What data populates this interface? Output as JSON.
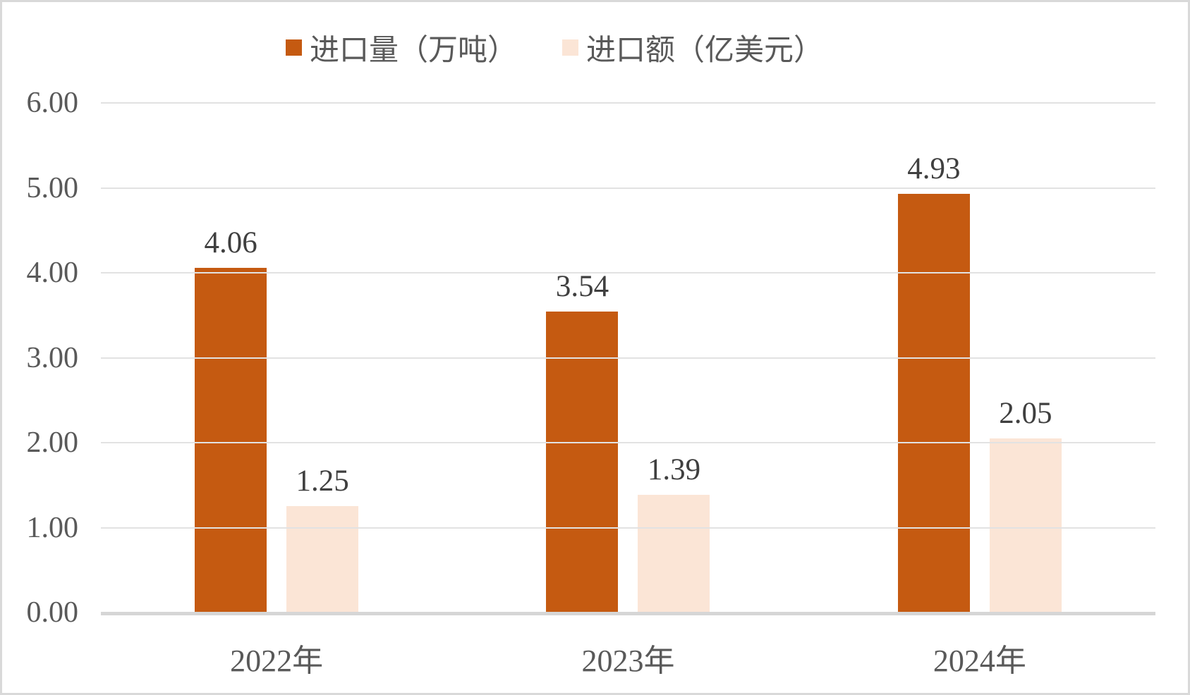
{
  "colors": {
    "series1": "#C55A11",
    "series2": "#FBE5D6",
    "gridline": "#E2E2E2",
    "axis_line": "#D6D6D6",
    "tick_text": "#595959",
    "data_label_text": "#3F3F3F",
    "frame_border": "#D9D9D9"
  },
  "chart_data": {
    "type": "bar",
    "title": "",
    "xlabel": "",
    "ylabel": "",
    "categories": [
      "2022年",
      "2023年",
      "2024年"
    ],
    "series": [
      {
        "name": "进口量（万吨）",
        "color": "#C55A11",
        "values": [
          4.06,
          3.54,
          4.93
        ],
        "labels": [
          "4.06",
          "3.54",
          "4.93"
        ]
      },
      {
        "name": "进口额（亿美元）",
        "color": "#FBE5D6",
        "values": [
          1.25,
          1.39,
          2.05
        ],
        "labels": [
          "1.25",
          "1.39",
          "2.05"
        ]
      }
    ],
    "y_ticks": [
      {
        "value": 0,
        "label": "0.00"
      },
      {
        "value": 1,
        "label": "1.00"
      },
      {
        "value": 2,
        "label": "2.00"
      },
      {
        "value": 3,
        "label": "3.00"
      },
      {
        "value": 4,
        "label": "4.00"
      },
      {
        "value": 5,
        "label": "5.00"
      },
      {
        "value": 6,
        "label": "6.00"
      }
    ],
    "ylim": [
      0,
      6
    ],
    "grid": true,
    "legend_position": "top"
  }
}
